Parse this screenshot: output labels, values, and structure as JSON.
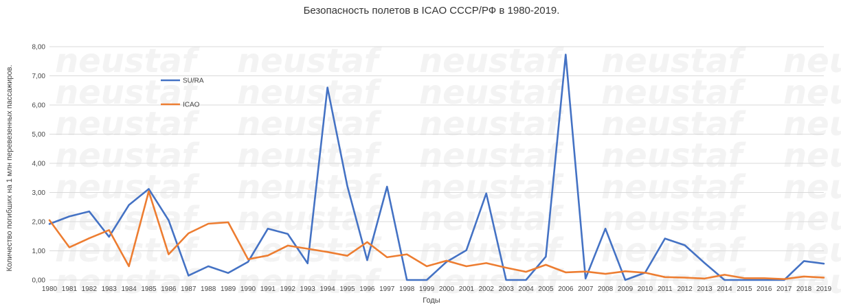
{
  "chart_data": {
    "type": "line",
    "title": "Безопасность полетов в ICAO СССР/РФ в 1980-2019.",
    "xlabel": "Годы",
    "ylabel": "Количество погибших на 1 млн перевезенных пассажиров.",
    "watermark": "neustaf",
    "ylim": [
      0,
      8
    ],
    "yticks": [
      "0,00",
      "1,00",
      "2,00",
      "3,00",
      "4,00",
      "5,00",
      "6,00",
      "7,00",
      "8,00"
    ],
    "grid": true,
    "legend_position": "top-left",
    "categories": [
      "1980",
      "1981",
      "1982",
      "1983",
      "1984",
      "1985",
      "1986",
      "1987",
      "1988",
      "1989",
      "1990",
      "1991",
      "1992",
      "1993",
      "1994",
      "1995",
      "1996",
      "1997",
      "1998",
      "1999",
      "2000",
      "2001",
      "2002",
      "2003",
      "2004",
      "2005",
      "2006",
      "2007",
      "2008",
      "2009",
      "2010",
      "2011",
      "2012",
      "2013",
      "2014",
      "2015",
      "2016",
      "2017",
      "2018",
      "2019"
    ],
    "series": [
      {
        "name": "SU/RA",
        "color": "#4472c4",
        "values": [
          1.92,
          2.18,
          2.35,
          1.48,
          2.57,
          3.12,
          2.05,
          0.15,
          0.47,
          0.24,
          0.62,
          1.76,
          1.58,
          0.57,
          6.6,
          3.22,
          0.68,
          3.2,
          0.0,
          0.0,
          0.62,
          1.02,
          2.97,
          0.0,
          0.0,
          0.8,
          7.73,
          0.05,
          1.76,
          0.0,
          0.25,
          1.42,
          1.19,
          0.58,
          0.0,
          0.0,
          0.0,
          0.0,
          0.65,
          0.56
        ]
      },
      {
        "name": "ICAO",
        "color": "#ed7d31",
        "values": [
          2.05,
          1.12,
          1.43,
          1.71,
          0.47,
          3.04,
          0.88,
          1.6,
          1.93,
          1.98,
          0.71,
          0.84,
          1.18,
          1.07,
          0.96,
          0.83,
          1.3,
          0.78,
          0.88,
          0.47,
          0.66,
          0.47,
          0.58,
          0.42,
          0.28,
          0.52,
          0.26,
          0.29,
          0.21,
          0.3,
          0.25,
          0.1,
          0.08,
          0.05,
          0.18,
          0.06,
          0.06,
          0.03,
          0.12,
          0.08
        ]
      }
    ]
  }
}
